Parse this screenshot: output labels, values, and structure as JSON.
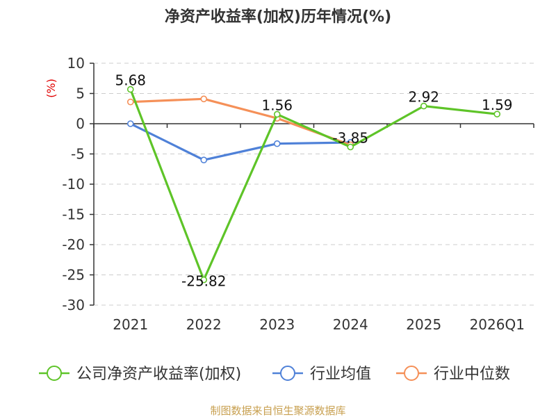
{
  "chart_data": {
    "type": "line",
    "title": "净资产收益率(加权)历年情况(%)",
    "ylabel": "(%)",
    "xlabel": "",
    "categories": [
      "2021",
      "2022",
      "2023",
      "2024",
      "2025",
      "2026Q1"
    ],
    "ylim": [
      -30,
      10
    ],
    "yticks": [
      10,
      5,
      0,
      -5,
      -10,
      -15,
      -20,
      -25,
      -30
    ],
    "grid": true,
    "legend_position": "bottom",
    "series": [
      {
        "name": "公司净资产收益率(加权)",
        "color": "#5ec428",
        "values": [
          5.68,
          -25.82,
          1.56,
          -3.85,
          2.92,
          1.59
        ],
        "labels": [
          "5.68",
          "-25.82",
          "1.56",
          "-3.85",
          "2.92",
          "1.59"
        ]
      },
      {
        "name": "行业均值",
        "color": "#4f81d8",
        "values": [
          0.0,
          -6.0,
          -3.3,
          -3.1,
          null,
          null
        ]
      },
      {
        "name": "行业中位数",
        "color": "#f59058",
        "values": [
          3.6,
          4.1,
          0.9,
          -3.5,
          null,
          null
        ]
      }
    ],
    "source": "制图数据来自恒生聚源数据库"
  }
}
